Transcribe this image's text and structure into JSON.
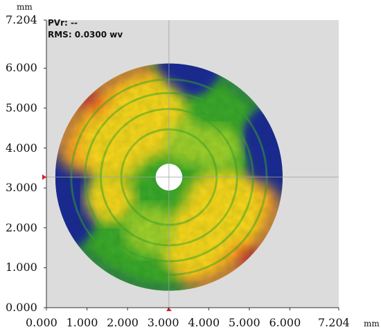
{
  "overlay": {
    "pvr_label": "PVr: --",
    "rms_label": "RMS: 0.0300 wv"
  },
  "axes": {
    "unit_top": "mm",
    "unit_right": "mm",
    "y_ticks": [
      "7.204",
      "6.000",
      "5.000",
      "4.000",
      "3.000",
      "2.000",
      "1.000",
      "0.000"
    ],
    "x_ticks": [
      "0.000",
      "1.000",
      "2.000",
      "3.000",
      "4.000",
      "5.000",
      "6.000",
      "7.204"
    ]
  },
  "map": {
    "extent_mm": 7.204,
    "center_mm": [
      3.02,
      3.27
    ],
    "outer_radius_mm": 2.8,
    "inner_radius_mm": 0.33,
    "crosshair_mm": [
      3.02,
      3.27
    ]
  },
  "colors": {
    "background": "#dcdcdc",
    "blue": "#1a2c94",
    "green": "#3aa52a",
    "light_green": "#9ccc2a",
    "yellow": "#f2d21a",
    "orange": "#f5a020",
    "red": "#e8301e",
    "marker": "#e02020",
    "crosshair": "#a0a0a0"
  }
}
